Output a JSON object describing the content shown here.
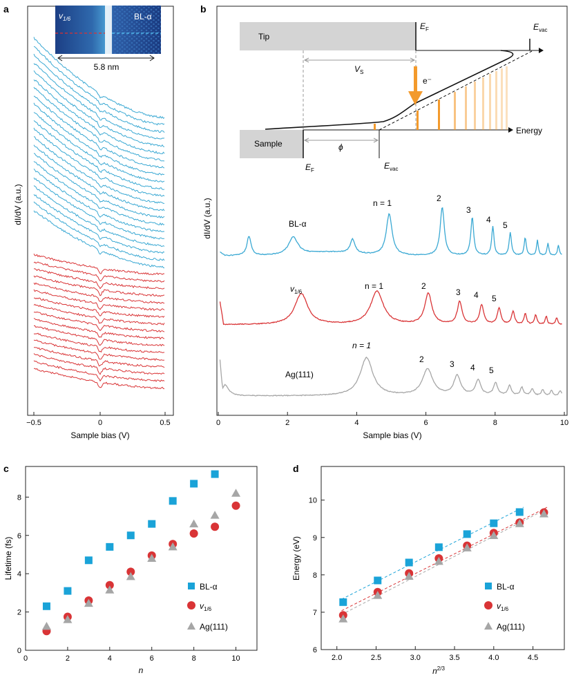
{
  "colors": {
    "blue": "#39a8d3",
    "red": "#d93436",
    "gray": "#a6a6a6",
    "sq": "#1aa3d8",
    "orange": "#f39a2c",
    "orangeLight": "#f6cc92",
    "greyBox": "#d4d4d4"
  },
  "panel_a": {
    "label": "a",
    "ylabel": "dI/dV (a.u.)",
    "xlabel": "Sample bias (V)",
    "xticks": [
      "−0.5",
      "0",
      "0.5"
    ],
    "inset": {
      "left_label": "v1/6",
      "left_label_main": "v",
      "left_label_sub": "1/6",
      "right_label": "BL-α",
      "scale": "5.8 nm"
    },
    "n_blue": 22,
    "n_red": 17
  },
  "panel_b": {
    "label": "b",
    "ylabel": "dI/dV (a.u.)",
    "xlabel": "Sample bias (V)",
    "xticks": [
      "0",
      "2",
      "4",
      "6",
      "8",
      "10"
    ],
    "schematic": {
      "tip": "Tip",
      "sample": "Sample",
      "energy": "Energy",
      "ef_tip": "E",
      "ef_tip_sub": "F",
      "evac_tip": "E",
      "evac_tip_sub": "vac",
      "ef_sample": "E",
      "ef_sample_sub": "F",
      "evac_sample": "E",
      "evac_sample_sub": "vac",
      "vs": "V",
      "vs_sub": "S",
      "phi": "ϕ",
      "electron": "e⁻"
    },
    "traces": [
      {
        "name": "BL-α",
        "labels": [
          "n = 1",
          "2",
          "3",
          "4",
          "5"
        ]
      },
      {
        "name": "v1/6",
        "name_main": "v",
        "name_sub": "1/6",
        "labels": [
          "n = 1",
          "2",
          "3",
          "4",
          "5"
        ]
      },
      {
        "name": "Ag(111)",
        "labels": [
          "n = 1",
          "2",
          "3",
          "4",
          "5"
        ]
      }
    ]
  },
  "chart_data": [
    {
      "panel": "c",
      "type": "scatter",
      "xlabel": "n",
      "ylabel": "Lifetime (fs)",
      "xlim": [
        0,
        11
      ],
      "ylim": [
        0,
        9.6
      ],
      "xticks": [
        0,
        2,
        4,
        6,
        8,
        10
      ],
      "yticks": [
        0,
        2,
        4,
        6,
        8
      ],
      "legend": [
        "BL-α",
        "v1/6",
        "Ag(111)"
      ],
      "series": [
        {
          "name": "BL-α",
          "marker": "square",
          "x": [
            1,
            2,
            3,
            4,
            5,
            6,
            7,
            8,
            9
          ],
          "y": [
            2.3,
            3.1,
            4.7,
            5.4,
            6.0,
            6.6,
            7.8,
            8.7,
            9.2
          ]
        },
        {
          "name": "v1/6",
          "marker": "circle",
          "x": [
            1,
            2,
            3,
            4,
            5,
            6,
            7,
            8,
            9,
            10
          ],
          "y": [
            1.0,
            1.75,
            2.6,
            3.4,
            4.1,
            4.95,
            5.55,
            6.1,
            6.45,
            7.55
          ]
        },
        {
          "name": "Ag(111)",
          "marker": "triangle",
          "x": [
            1,
            2,
            3,
            4,
            5,
            6,
            7,
            8,
            9,
            10
          ],
          "y": [
            1.25,
            1.6,
            2.45,
            3.15,
            3.85,
            4.8,
            5.4,
            6.6,
            7.05,
            8.2
          ]
        }
      ]
    },
    {
      "panel": "d",
      "type": "scatter",
      "xlabel": "n2/3",
      "ylabel": "Energy (eV)",
      "xlim": [
        1.8,
        4.9
      ],
      "ylim": [
        6,
        10.9
      ],
      "xticks": [
        "2.0",
        "2.5",
        "3.0",
        "3.5",
        "4.0",
        "4.5"
      ],
      "yticks": [
        6,
        7,
        8,
        9,
        10
      ],
      "legend": [
        "BL-α",
        "v1/6",
        "Ag(111)"
      ],
      "series": [
        {
          "name": "BL-α",
          "marker": "square",
          "x": [
            2.08,
            2.52,
            2.92,
            3.3,
            3.66,
            4.0,
            4.33
          ],
          "y": [
            7.27,
            7.85,
            8.33,
            8.74,
            9.09,
            9.38,
            9.68
          ]
        },
        {
          "name": "v1/6",
          "marker": "circle",
          "x": [
            2.08,
            2.52,
            2.92,
            3.3,
            3.66,
            4.0,
            4.33,
            4.64
          ],
          "y": [
            6.92,
            7.54,
            8.04,
            8.44,
            8.78,
            9.12,
            9.4,
            9.67
          ]
        },
        {
          "name": "Ag(111)",
          "marker": "triangle",
          "x": [
            2.08,
            2.52,
            2.92,
            3.3,
            3.66,
            4.0,
            4.33,
            4.64
          ],
          "y": [
            6.82,
            7.45,
            7.96,
            8.36,
            8.72,
            9.05,
            9.37,
            9.63
          ]
        }
      ]
    }
  ]
}
